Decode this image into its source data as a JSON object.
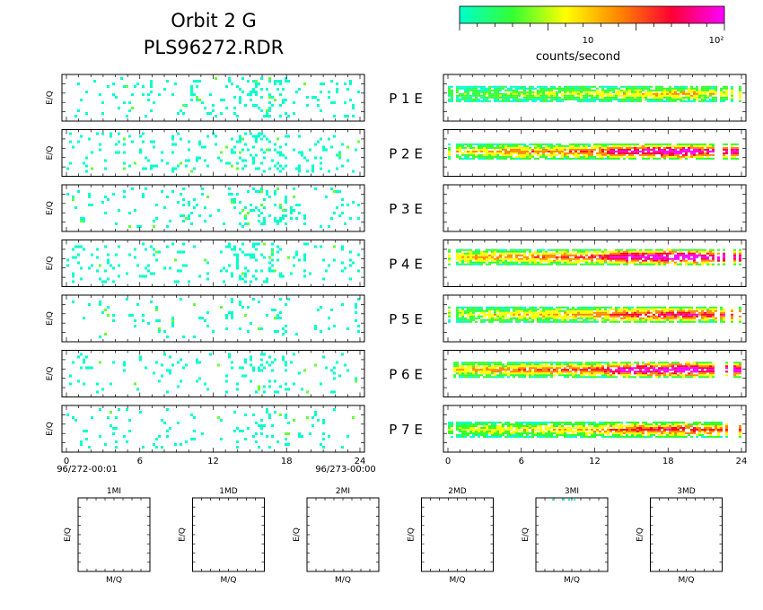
{
  "header": {
    "title_line1": "Orbit 2 G",
    "title_line2": "PLS96272.RDR"
  },
  "colorbar": {
    "label": "counts/second",
    "tick_labels": [
      "10",
      "10²"
    ],
    "colors": [
      "#00ffcc",
      "#33ff33",
      "#ffff00",
      "#ff8800",
      "#ff0033",
      "#ff00ff"
    ]
  },
  "chart_data": {
    "type": "heatmap",
    "y_axis_label": "E/Q",
    "x_ticks": [
      "0",
      "6",
      "12",
      "18",
      "24"
    ],
    "x_range_hours": [
      0,
      24
    ],
    "start_label": "96/272-00:01",
    "end_label": "96/273-00:00",
    "rows": [
      {
        "label": "P  1  E",
        "left_density": 0.08,
        "band_intensity": 0.35,
        "band_rel_y": 0.4
      },
      {
        "label": "P  2  E",
        "left_density": 0.09,
        "band_intensity": 0.75,
        "band_rel_y": 0.45
      },
      {
        "label": "P  3  E",
        "left_density": 0.08,
        "band_intensity": 0.0,
        "band_rel_y": 0.5
      },
      {
        "label": "P  4  E",
        "left_density": 0.09,
        "band_intensity": 0.8,
        "band_rel_y": 0.35
      },
      {
        "label": "P  5  E",
        "left_density": 0.04,
        "band_intensity": 0.6,
        "band_rel_y": 0.4
      },
      {
        "label": "P  6  E",
        "left_density": 0.06,
        "band_intensity": 0.8,
        "band_rel_y": 0.4
      },
      {
        "label": "P  7  E",
        "left_density": 0.05,
        "band_intensity": 0.55,
        "band_rel_y": 0.5
      }
    ],
    "small_panels": [
      {
        "title": "1MI"
      },
      {
        "title": "1MD"
      },
      {
        "title": "2MI"
      },
      {
        "title": "2MD"
      },
      {
        "title": "3MI"
      },
      {
        "title": "3MD"
      }
    ],
    "small_axis_labels": {
      "x": "M/Q",
      "y": "E/Q"
    }
  }
}
